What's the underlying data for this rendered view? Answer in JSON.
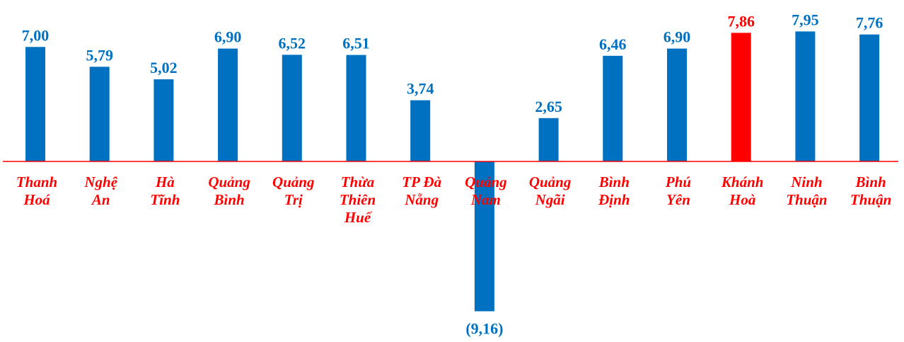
{
  "chart_data": {
    "type": "bar",
    "categories": [
      [
        "Thanh",
        "Hoá"
      ],
      [
        "Nghệ",
        "An"
      ],
      [
        "Hà",
        "Tĩnh"
      ],
      [
        "Quảng",
        "Bình"
      ],
      [
        "Quảng",
        "Trị"
      ],
      [
        "Thừa",
        "Thiên",
        "Huế"
      ],
      [
        "TP Đà",
        "Nẵng"
      ],
      [
        "Quảng",
        "Nam"
      ],
      [
        "Quảng",
        "Ngãi"
      ],
      [
        "Bình",
        "Định"
      ],
      [
        "Phú",
        "Yên"
      ],
      [
        "Khánh",
        "Hoà"
      ],
      [
        "Ninh",
        "Thuận"
      ],
      [
        "Bình",
        "Thuận"
      ]
    ],
    "values": [
      7.0,
      5.79,
      5.02,
      6.9,
      6.52,
      6.51,
      3.74,
      -9.16,
      2.65,
      6.46,
      6.9,
      7.86,
      7.95,
      7.76
    ],
    "value_labels": [
      "7,00",
      "5,79",
      "5,02",
      "6,90",
      "6,52",
      "6,51",
      "3,74",
      "(9,16)",
      "2,65",
      "6,46",
      "6,90",
      "7,86",
      "7,95",
      "7,76"
    ],
    "highlight_index": 11,
    "title": "",
    "xlabel": "",
    "ylabel": "",
    "ylim": [
      -9.16,
      7.95
    ],
    "grid": false,
    "legend": "none",
    "colors": {
      "bar": "#0070C0",
      "highlight_bar": "#FF0000",
      "value_label": "#0070C0",
      "highlight_label": "#FF0000",
      "category_label": "#FF0000",
      "axis_line": "#FF0000"
    }
  }
}
